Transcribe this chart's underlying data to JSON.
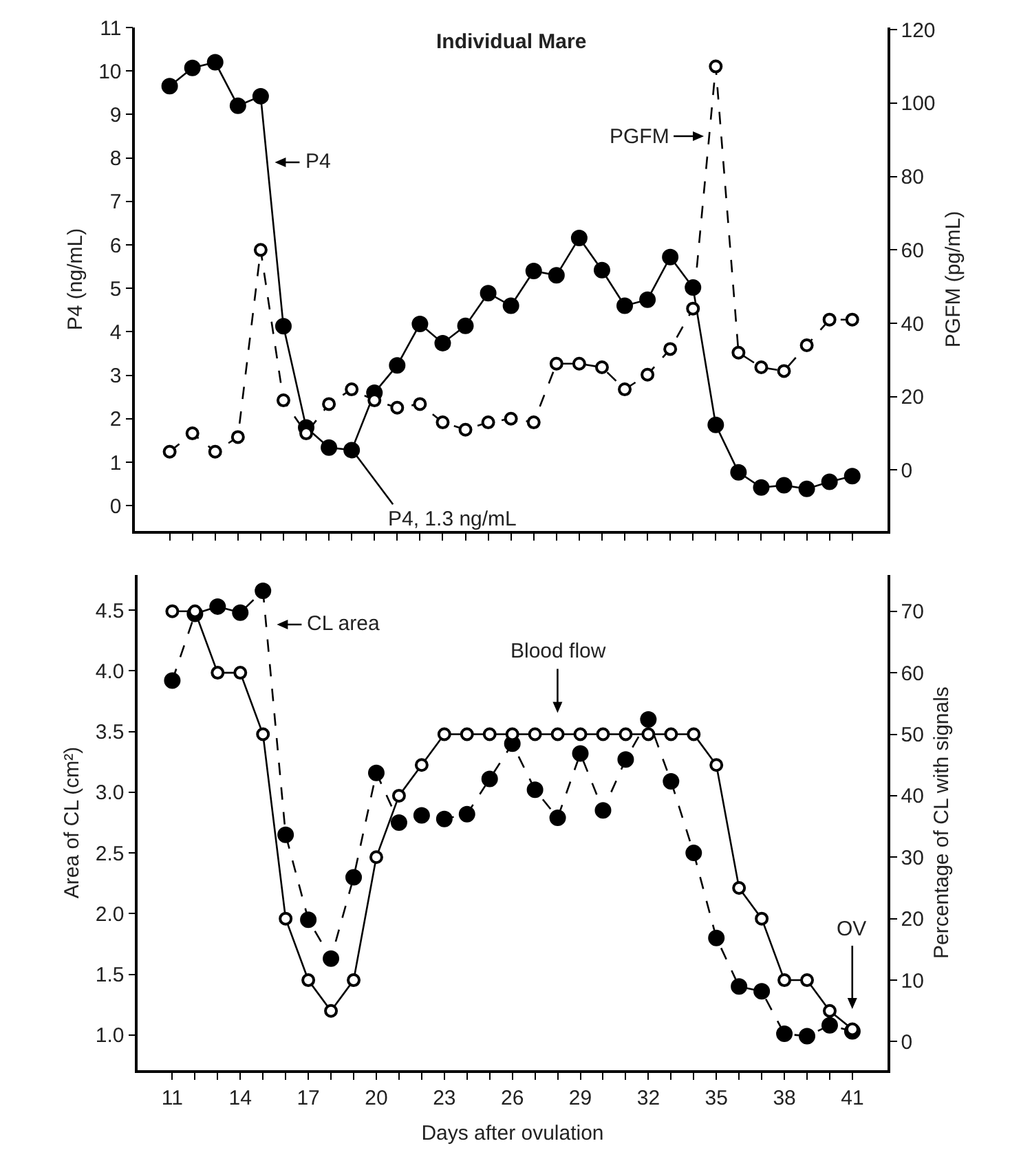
{
  "chart_data": [
    {
      "type": "line",
      "title": "Individual Mare",
      "ylabel": "P4 (ng/mL)",
      "y2label": "PGFM (pg/mL)",
      "x": [
        11,
        12,
        13,
        14,
        15,
        16,
        17,
        18,
        19,
        20,
        21,
        22,
        23,
        24,
        25,
        26,
        27,
        28,
        29,
        30,
        31,
        32,
        33,
        34,
        35,
        36,
        37,
        38,
        39,
        40,
        41
      ],
      "series": [
        {
          "color": "#000000",
          "line_style": "solid",
          "values": [
            9.65,
            10.07,
            10.2,
            9.2,
            9.42,
            4.13,
            1.8,
            1.34,
            1.28,
            2.6,
            3.23,
            4.18,
            3.74,
            4.14,
            4.89,
            4.6,
            5.4,
            5.3,
            6.16,
            5.42,
            4.6,
            4.74,
            5.72,
            5.02,
            1.86,
            0.77,
            0.42,
            0.47,
            0.39,
            0.55,
            0.68
          ]
        },
        {
          "color": "#000000",
          "line_style": "dashed",
          "axis": "y2",
          "values": [
            5,
            10,
            5,
            9,
            60,
            19,
            10,
            18,
            22,
            19,
            17,
            18,
            13,
            11,
            13,
            14,
            13,
            29,
            29,
            28,
            22,
            26,
            33,
            44,
            110,
            32,
            28,
            27,
            34,
            41,
            41
          ]
        }
      ],
      "xlim": [
        9.47,
        42.55
      ],
      "xticks": [
        11,
        {
          "value": 12,
          "label": null
        },
        {
          "value": 13,
          "label": null
        },
        14,
        {
          "value": 15,
          "label": null
        },
        {
          "value": 16,
          "label": null
        },
        17,
        {
          "value": 18,
          "label": null
        },
        {
          "value": 19,
          "label": null
        },
        20,
        {
          "value": 21,
          "label": null
        },
        {
          "value": 22,
          "label": null
        },
        23,
        {
          "value": 24,
          "label": null
        },
        {
          "value": 25,
          "label": null
        },
        26,
        {
          "value": 27,
          "label": null
        },
        {
          "value": 28,
          "label": null
        },
        29,
        {
          "value": 30,
          "label": null
        },
        {
          "value": 31,
          "label": null
        },
        32,
        {
          "value": 33,
          "label": null
        },
        {
          "value": 34,
          "label": null
        },
        35,
        {
          "value": 36,
          "label": null
        },
        {
          "value": 37,
          "label": null
        },
        38,
        {
          "value": 39,
          "label": null
        },
        {
          "value": 40,
          "label": null
        },
        41
      ],
      "ylim": [
        -0.58,
        11
      ],
      "yticks": [
        0,
        1,
        2,
        3,
        4,
        5,
        6,
        7,
        8,
        9,
        10,
        11
      ],
      "y2lim": [
        -16.6,
        120.6
      ],
      "y2ticks": [
        0,
        20,
        40,
        60,
        80,
        100,
        120
      ],
      "tick_labels": "y",
      "grid": false,
      "marker": "circle",
      "annotations": [
        {
          "text": "P4",
          "x": 15.5,
          "y": 7.9
        },
        {
          "text": "PGFM",
          "x": 34.6,
          "y": 8.5
        },
        {
          "text": "P4, 1.3 ng/mL",
          "x": 19,
          "y": 1.3
        }
      ]
    },
    {
      "type": "line",
      "xlabel": "Days after ovulation",
      "ylabel": "Area of CL (cm²)",
      "y2label": "Percentage of CL with signals",
      "x": [
        11,
        12,
        13,
        14,
        15,
        16,
        17,
        18,
        19,
        20,
        21,
        22,
        23,
        24,
        25,
        26,
        27,
        28,
        29,
        30,
        31,
        32,
        33,
        34,
        35,
        36,
        37,
        38,
        39,
        40,
        41
      ],
      "series": [
        {
          "color": "#000000",
          "line_style": "dashed",
          "values": [
            3.92,
            4.47,
            4.53,
            4.48,
            4.66,
            2.65,
            1.95,
            1.63,
            2.3,
            3.16,
            2.75,
            2.81,
            2.78,
            2.82,
            3.11,
            3.4,
            3.02,
            2.79,
            3.32,
            2.85,
            3.27,
            3.6,
            3.09,
            2.5,
            1.8,
            1.4,
            1.36,
            1.01,
            0.99,
            1.08,
            1.03
          ]
        },
        {
          "color": "#000000",
          "line_style": "solid",
          "axis": "y2",
          "values": [
            70,
            70,
            60,
            60,
            50,
            20,
            10,
            5,
            10,
            30,
            40,
            45,
            50,
            50,
            50,
            50,
            50,
            50,
            50,
            50,
            50,
            50,
            50,
            50,
            45,
            25,
            20,
            10,
            10,
            5,
            2
          ]
        }
      ],
      "xlim": [
        9.47,
        42.55
      ],
      "xticks": [
        11,
        {
          "value": 12,
          "label": null
        },
        {
          "value": 13,
          "label": null
        },
        14,
        {
          "value": 15,
          "label": null
        },
        {
          "value": 16,
          "label": null
        },
        17,
        {
          "value": 18,
          "label": null
        },
        {
          "value": 19,
          "label": null
        },
        20,
        {
          "value": 21,
          "label": null
        },
        {
          "value": 22,
          "label": null
        },
        23,
        {
          "value": 24,
          "label": null
        },
        {
          "value": 25,
          "label": null
        },
        26,
        {
          "value": 27,
          "label": null
        },
        {
          "value": 28,
          "label": null
        },
        29,
        {
          "value": 30,
          "label": null
        },
        {
          "value": 31,
          "label": null
        },
        32,
        {
          "value": 33,
          "label": null
        },
        {
          "value": 34,
          "label": null
        },
        35,
        {
          "value": 36,
          "label": null
        },
        {
          "value": 37,
          "label": null
        },
        38,
        {
          "value": 39,
          "label": null
        },
        {
          "value": 40,
          "label": null
        },
        41
      ],
      "ylim": [
        0.71,
        4.79
      ],
      "yticks": [
        {
          "value": 1,
          "label": "1.0"
        },
        {
          "value": 1.5,
          "label": "1.5"
        },
        {
          "value": 2,
          "label": "2.0"
        },
        {
          "value": 2.5,
          "label": "2.5"
        },
        {
          "value": 3,
          "label": "3.0"
        },
        {
          "value": 3.5,
          "label": "3.5"
        },
        {
          "value": 4,
          "label": "4.0"
        },
        {
          "value": 4.5,
          "label": "4.5"
        }
      ],
      "y2lim": [
        -4.65,
        75.9
      ],
      "y2ticks": [
        0,
        10,
        20,
        30,
        40,
        50,
        60,
        70
      ],
      "grid": false,
      "marker": "circle",
      "annotations": [
        "CL area",
        "Blood flow",
        "OV"
      ]
    }
  ]
}
